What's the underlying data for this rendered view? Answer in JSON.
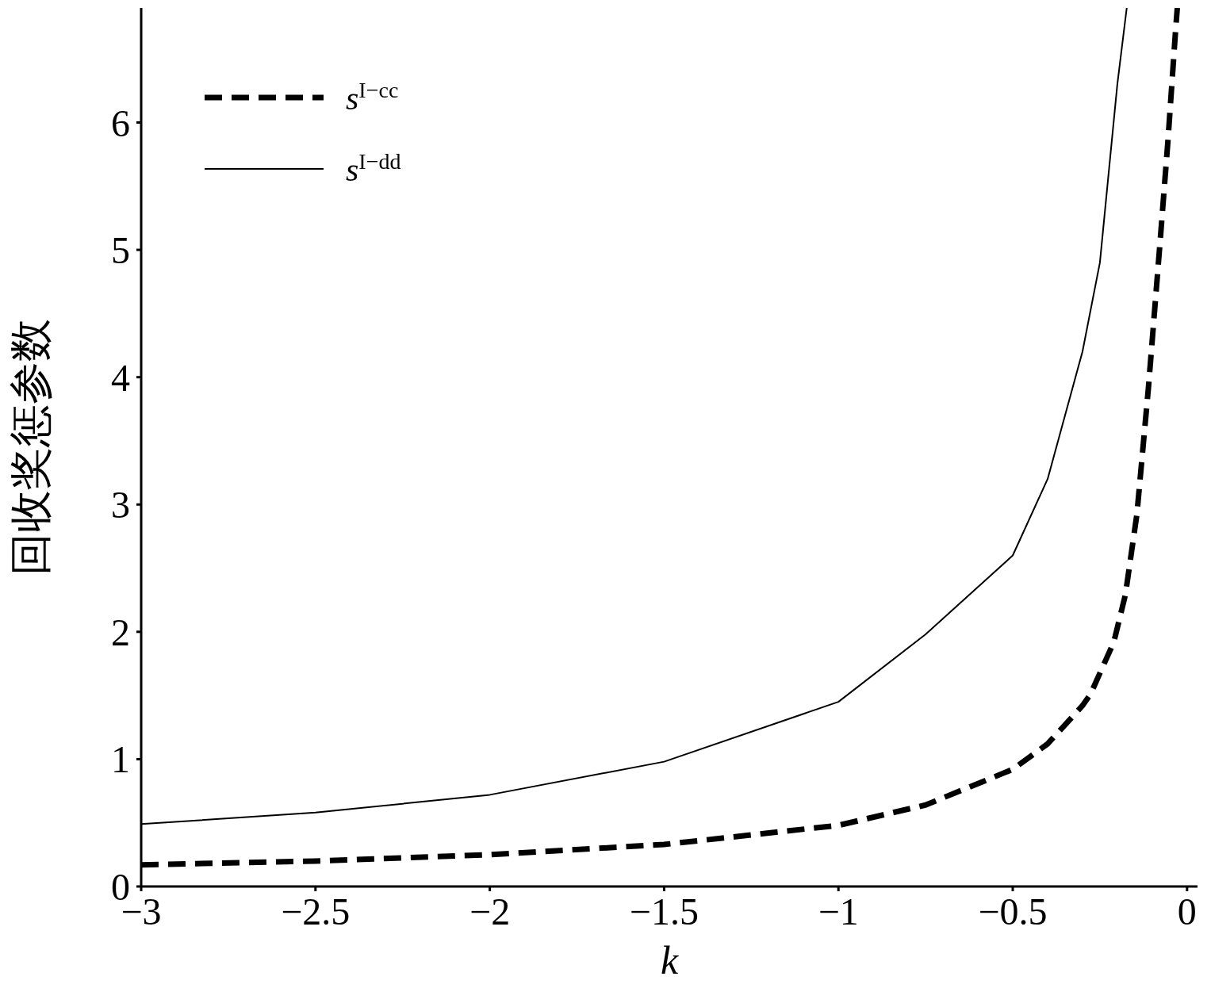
{
  "chart_data": {
    "type": "line",
    "xlabel": "k",
    "ylabel": "回收奖惩参数",
    "xlim": [
      -3,
      0.03
    ],
    "ylim": [
      0,
      6.9
    ],
    "xticks": [
      {
        "value": -3,
        "label": "−3"
      },
      {
        "value": -2.5,
        "label": "−2.5"
      },
      {
        "value": -2,
        "label": "−2"
      },
      {
        "value": -1.5,
        "label": "−1.5"
      },
      {
        "value": -1,
        "label": "−1"
      },
      {
        "value": -0.5,
        "label": "−0.5"
      },
      0
    ],
    "yticks": [
      0,
      1,
      2,
      3,
      4,
      5,
      6
    ],
    "grid": false,
    "legend": "top left",
    "marker": "none",
    "series": [
      {
        "name": "s$^{I−cc}$",
        "color": "#000000",
        "line_style": "dashed",
        "x": [
          -3,
          -2.5,
          -2,
          -1.5,
          -1,
          -0.75,
          -0.5,
          -0.4,
          -0.3,
          -0.277,
          -0.21,
          -0.177,
          -0.144,
          -0.111,
          -0.078,
          -0.055,
          -0.033,
          -0.028
        ],
        "values": [
          0.17,
          0.2,
          0.25,
          0.33,
          0.48,
          0.64,
          0.92,
          1.12,
          1.42,
          1.51,
          1.92,
          2.29,
          2.92,
          3.91,
          5.04,
          5.85,
          6.72,
          6.9
        ]
      },
      {
        "name": "s$^{I−dd}$",
        "color": "#000000",
        "line_style": "solid",
        "x": [
          -3,
          -2.5,
          -2,
          -1.5,
          -1,
          -0.75,
          -0.5,
          -0.4,
          -0.3,
          -0.25,
          -0.2,
          -0.173
        ],
        "values": [
          0.49,
          0.58,
          0.72,
          0.98,
          1.45,
          1.98,
          2.6,
          3.2,
          4.2,
          4.9,
          6.3,
          6.9
        ]
      }
    ]
  }
}
